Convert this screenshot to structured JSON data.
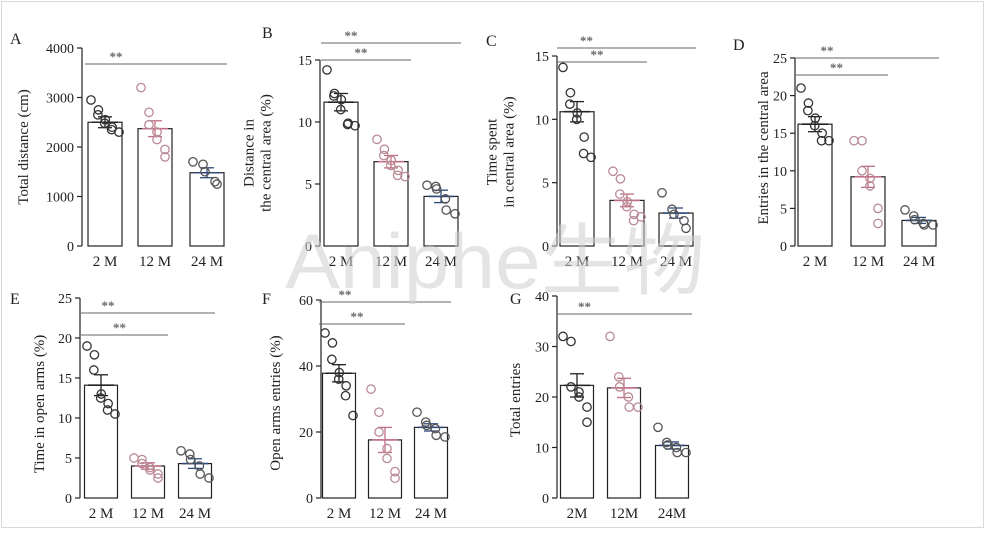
{
  "watermark": "Aniphe生物",
  "significance_label": "**",
  "colors": {
    "axis": "#222222",
    "bar_fill": "#ffffff",
    "point_group1": "#333333",
    "point_group2": "#b98a96",
    "point_group3": "#555555",
    "mean_group1": "#222222",
    "mean_group2": "#c06f86",
    "mean_group3": "#2f4a7a",
    "sig_line": "#666666",
    "watermark": "#cfcfcf"
  },
  "chart_data": [
    {
      "panel": "A",
      "type": "bar",
      "categories": [
        "2 M",
        "12 M",
        "24 M"
      ],
      "ylabel": [
        "Total distance (cm)"
      ],
      "ylim": [
        0,
        4000
      ],
      "yticks": [
        0,
        1000,
        2000,
        3000,
        4000
      ],
      "values": [
        2500,
        2370,
        1480
      ],
      "sem": [
        110,
        160,
        100
      ],
      "points": [
        [
          2950,
          2750,
          2650,
          2550,
          2480,
          2400,
          2350,
          2300
        ],
        [
          3200,
          2700,
          2450,
          2300,
          2150,
          1950,
          1800
        ],
        [
          1700,
          1650,
          1500,
          1300,
          1250
        ]
      ],
      "significance": [
        {
          "from": 0,
          "to": 2,
          "label": "**"
        }
      ]
    },
    {
      "panel": "B",
      "type": "bar",
      "categories": [
        "2 M",
        "12 M",
        "24 M"
      ],
      "ylabel": [
        "Distance in",
        "the central area (%)"
      ],
      "ylim": [
        0,
        15
      ],
      "yticks": [
        0,
        5,
        10,
        15
      ],
      "values": [
        11.6,
        6.8,
        4.0
      ],
      "sem": [
        0.7,
        0.5,
        0.5
      ],
      "points": [
        [
          14.2,
          12.3,
          12.1,
          11.8,
          11.0,
          9.9,
          9.8,
          9.7
        ],
        [
          8.6,
          7.8,
          7.3,
          6.9,
          6.5,
          6.1,
          5.7,
          5.6
        ],
        [
          4.9,
          4.8,
          4.6,
          3.8,
          2.9,
          2.6
        ]
      ],
      "significance": [
        {
          "from": 0,
          "to": 1,
          "label": "**"
        },
        {
          "from": 0,
          "to": 2,
          "label": "**"
        }
      ]
    },
    {
      "panel": "C",
      "type": "bar",
      "categories": [
        "2 M",
        "12 M",
        "24 M"
      ],
      "ylabel": [
        "Time spent",
        "in central area (%)"
      ],
      "ylim": [
        0,
        15
      ],
      "yticks": [
        0,
        5,
        10,
        15
      ],
      "values": [
        10.6,
        3.6,
        2.6
      ],
      "sem": [
        0.8,
        0.5,
        0.4
      ],
      "points": [
        [
          14.1,
          12.1,
          11.2,
          10.5,
          10.0,
          8.6,
          7.3,
          7.0
        ],
        [
          5.9,
          5.3,
          4.1,
          3.5,
          3.1,
          2.5,
          2.0,
          2.3
        ],
        [
          4.2,
          2.9,
          2.5,
          2.0,
          1.4
        ]
      ],
      "significance": [
        {
          "from": 0,
          "to": 1,
          "label": "**"
        },
        {
          "from": 0,
          "to": 2,
          "label": "**"
        }
      ]
    },
    {
      "panel": "D",
      "type": "bar",
      "categories": [
        "2 M",
        "12 M",
        "24 M"
      ],
      "ylabel": [
        "Entries in the central area"
      ],
      "ylim": [
        0,
        25
      ],
      "yticks": [
        0,
        5,
        10,
        15,
        20,
        25
      ],
      "values": [
        16.2,
        9.2,
        3.4
      ],
      "sem": [
        1.0,
        1.4,
        0.4
      ],
      "points": [
        [
          21.0,
          19.0,
          18.0,
          17.0,
          16.0,
          15.0,
          14.0,
          14.0
        ],
        [
          14.0,
          14.0,
          10.0,
          9.0,
          8.0,
          5.0,
          3.0
        ],
        [
          4.8,
          4.0,
          3.5,
          3.0,
          2.8,
          2.8
        ]
      ],
      "significance": [
        {
          "from": 0,
          "to": 1,
          "label": "**"
        },
        {
          "from": 0,
          "to": 2,
          "label": "**"
        }
      ]
    },
    {
      "panel": "E",
      "type": "bar",
      "categories": [
        "2 M",
        "12 M",
        "24 M"
      ],
      "ylabel": [
        "Time in open arms (%)"
      ],
      "ylim": [
        0,
        25
      ],
      "yticks": [
        0,
        5,
        10,
        15,
        20,
        25
      ],
      "values": [
        14.1,
        4.0,
        4.3
      ],
      "sem": [
        1.3,
        0.4,
        0.6
      ],
      "points": [
        [
          19.0,
          17.9,
          16.0,
          13.0,
          12.5,
          11.8,
          11.0,
          10.5
        ],
        [
          5.0,
          4.8,
          4.3,
          3.8,
          3.5,
          3.0,
          2.5
        ],
        [
          5.9,
          5.5,
          4.8,
          4.0,
          3.0,
          2.5
        ]
      ],
      "significance": [
        {
          "from": 0,
          "to": 1,
          "label": "**"
        },
        {
          "from": 0,
          "to": 2,
          "label": "**"
        }
      ]
    },
    {
      "panel": "F",
      "type": "bar",
      "categories": [
        "2 M",
        "12 M",
        "24 M"
      ],
      "ylabel": [
        "Open arms entries (%)"
      ],
      "ylim": [
        0,
        60
      ],
      "yticks": [
        0,
        20,
        40,
        60
      ],
      "values": [
        37.8,
        17.6,
        21.4
      ],
      "sem": [
        2.6,
        3.8,
        1.1
      ],
      "points": [
        [
          50.0,
          47.0,
          42.0,
          38.0,
          36.0,
          34.0,
          31.0,
          25.0
        ],
        [
          33.0,
          26.0,
          20.0,
          15.0,
          12.0,
          8.0,
          6.0
        ],
        [
          26.0,
          23.0,
          22.0,
          21.0,
          19.0,
          18.5
        ]
      ],
      "significance": [
        {
          "from": 0,
          "to": 1,
          "label": "**"
        },
        {
          "from": 0,
          "to": 2,
          "label": "**"
        }
      ]
    },
    {
      "panel": "G",
      "type": "bar",
      "categories": [
        "2M",
        "12M",
        "24M"
      ],
      "ylabel": [
        "Total entries"
      ],
      "ylim": [
        0,
        40
      ],
      "yticks": [
        0,
        10,
        20,
        30,
        40
      ],
      "values": [
        22.3,
        21.8,
        10.4
      ],
      "sem": [
        2.3,
        1.9,
        0.7
      ],
      "points": [
        [
          32.0,
          31.0,
          22.0,
          21.0,
          20.0,
          18.0,
          15.0
        ],
        [
          32.0,
          24.0,
          22.0,
          20.0,
          18.0,
          18.0
        ],
        [
          14.0,
          11.0,
          10.5,
          10.0,
          9.0,
          9.0
        ]
      ],
      "significance": [
        {
          "from": 0,
          "to": 2,
          "label": "**"
        }
      ]
    }
  ]
}
